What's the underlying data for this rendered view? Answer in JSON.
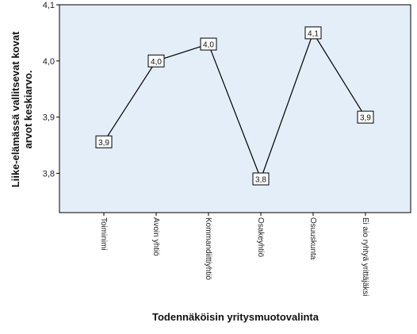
{
  "chart_data": {
    "type": "line",
    "xlabel": "Todennäköisin yritysmuotovalinta",
    "ylabel_lines": [
      "Liike-elämässä vallitsevat kovat",
      "arvot keskiarvo."
    ],
    "categories": [
      "Toiminimi",
      "Avoin yhtiö",
      "Kommandiittiyhtiö",
      "Osakeyhtiö",
      "Osuuskunta",
      "Ei aio ryhtyä yrittäjäksi"
    ],
    "values": [
      3.856,
      4.0,
      4.03,
      3.79,
      4.05,
      3.9
    ],
    "data_labels": [
      "3,9",
      "4,0",
      "4,0",
      "3,8",
      "4,1",
      "3,9"
    ],
    "ylim": [
      3.73,
      4.1
    ],
    "yticks": [
      3.8,
      3.9,
      4.0,
      4.1
    ],
    "ytick_labels": [
      "3,8",
      "3,9",
      "4,0",
      "4,1"
    ],
    "grid": false,
    "legend": false,
    "colors": {
      "plot_background": "#e3eef9",
      "line": "#000000",
      "label_box": "#ffffff"
    }
  }
}
